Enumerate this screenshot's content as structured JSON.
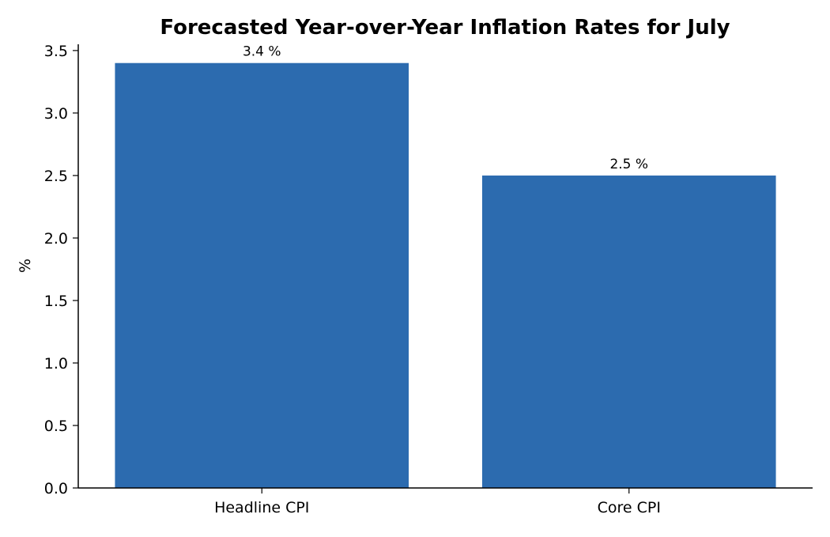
{
  "chart_data": {
    "type": "bar",
    "title": "Forecasted Year-over-Year Inflation Rates for July",
    "xlabel": "",
    "ylabel": "%",
    "categories": [
      "Headline CPI",
      "Core CPI"
    ],
    "values": [
      3.4,
      2.5
    ],
    "data_labels": [
      "3.4 %",
      "2.5 %"
    ],
    "ylim": [
      0,
      3.55
    ],
    "yticks": [
      0.0,
      0.5,
      1.0,
      1.5,
      2.0,
      2.5,
      3.0,
      3.5
    ],
    "ytick_labels": [
      "0.0",
      "0.5",
      "1.0",
      "1.5",
      "2.0",
      "2.5",
      "3.0",
      "3.5"
    ],
    "grid": false,
    "legend": "none",
    "bar_color": "#2c6baf",
    "axis_color": "#000000"
  }
}
